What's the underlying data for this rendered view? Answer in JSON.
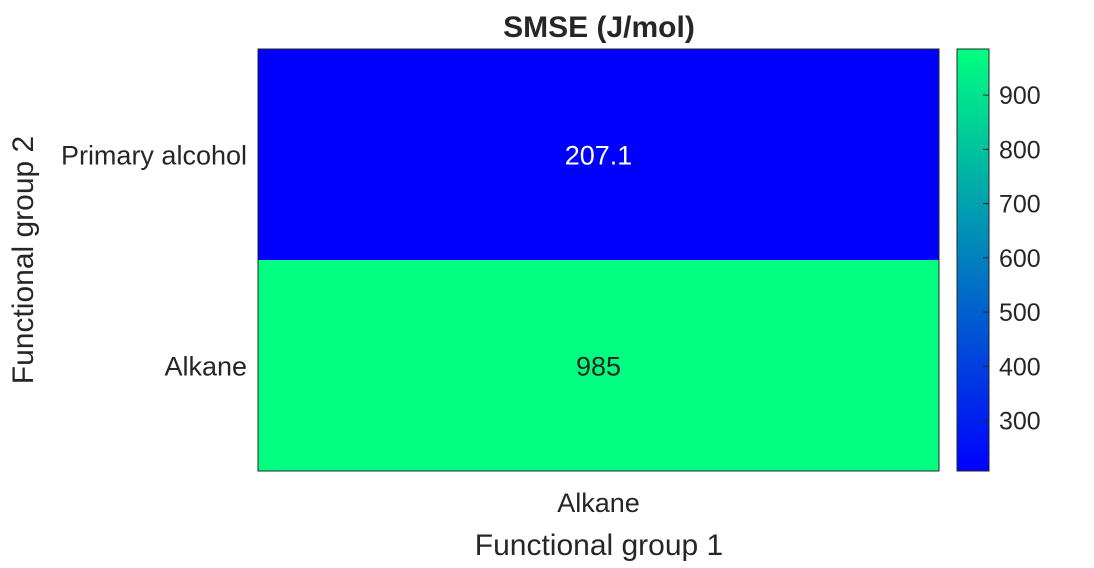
{
  "chart_data": {
    "type": "heatmap",
    "title": "SMSE (J/mol)",
    "xlabel": "Functional group 1",
    "ylabel": "Functional group 2",
    "x_categories": [
      "Alkane"
    ],
    "y_categories": [
      "Primary alcohol",
      "Alkane"
    ],
    "values": [
      [
        207.1
      ],
      [
        985
      ]
    ],
    "value_labels": [
      [
        "207.1"
      ],
      [
        "985"
      ]
    ],
    "colormap": "winter",
    "colormap_stops": [
      "#0000ff",
      "#00ff80"
    ],
    "cell_label_colors": [
      "#ffffff",
      "#262626"
    ],
    "colorbar": {
      "range": [
        207.1,
        985
      ],
      "ticks": [
        300,
        400,
        500,
        600,
        700,
        800,
        900
      ],
      "tick_labels": [
        "300",
        "400",
        "500",
        "600",
        "700",
        "800",
        "900"
      ],
      "placement": "right"
    },
    "grid": false
  }
}
